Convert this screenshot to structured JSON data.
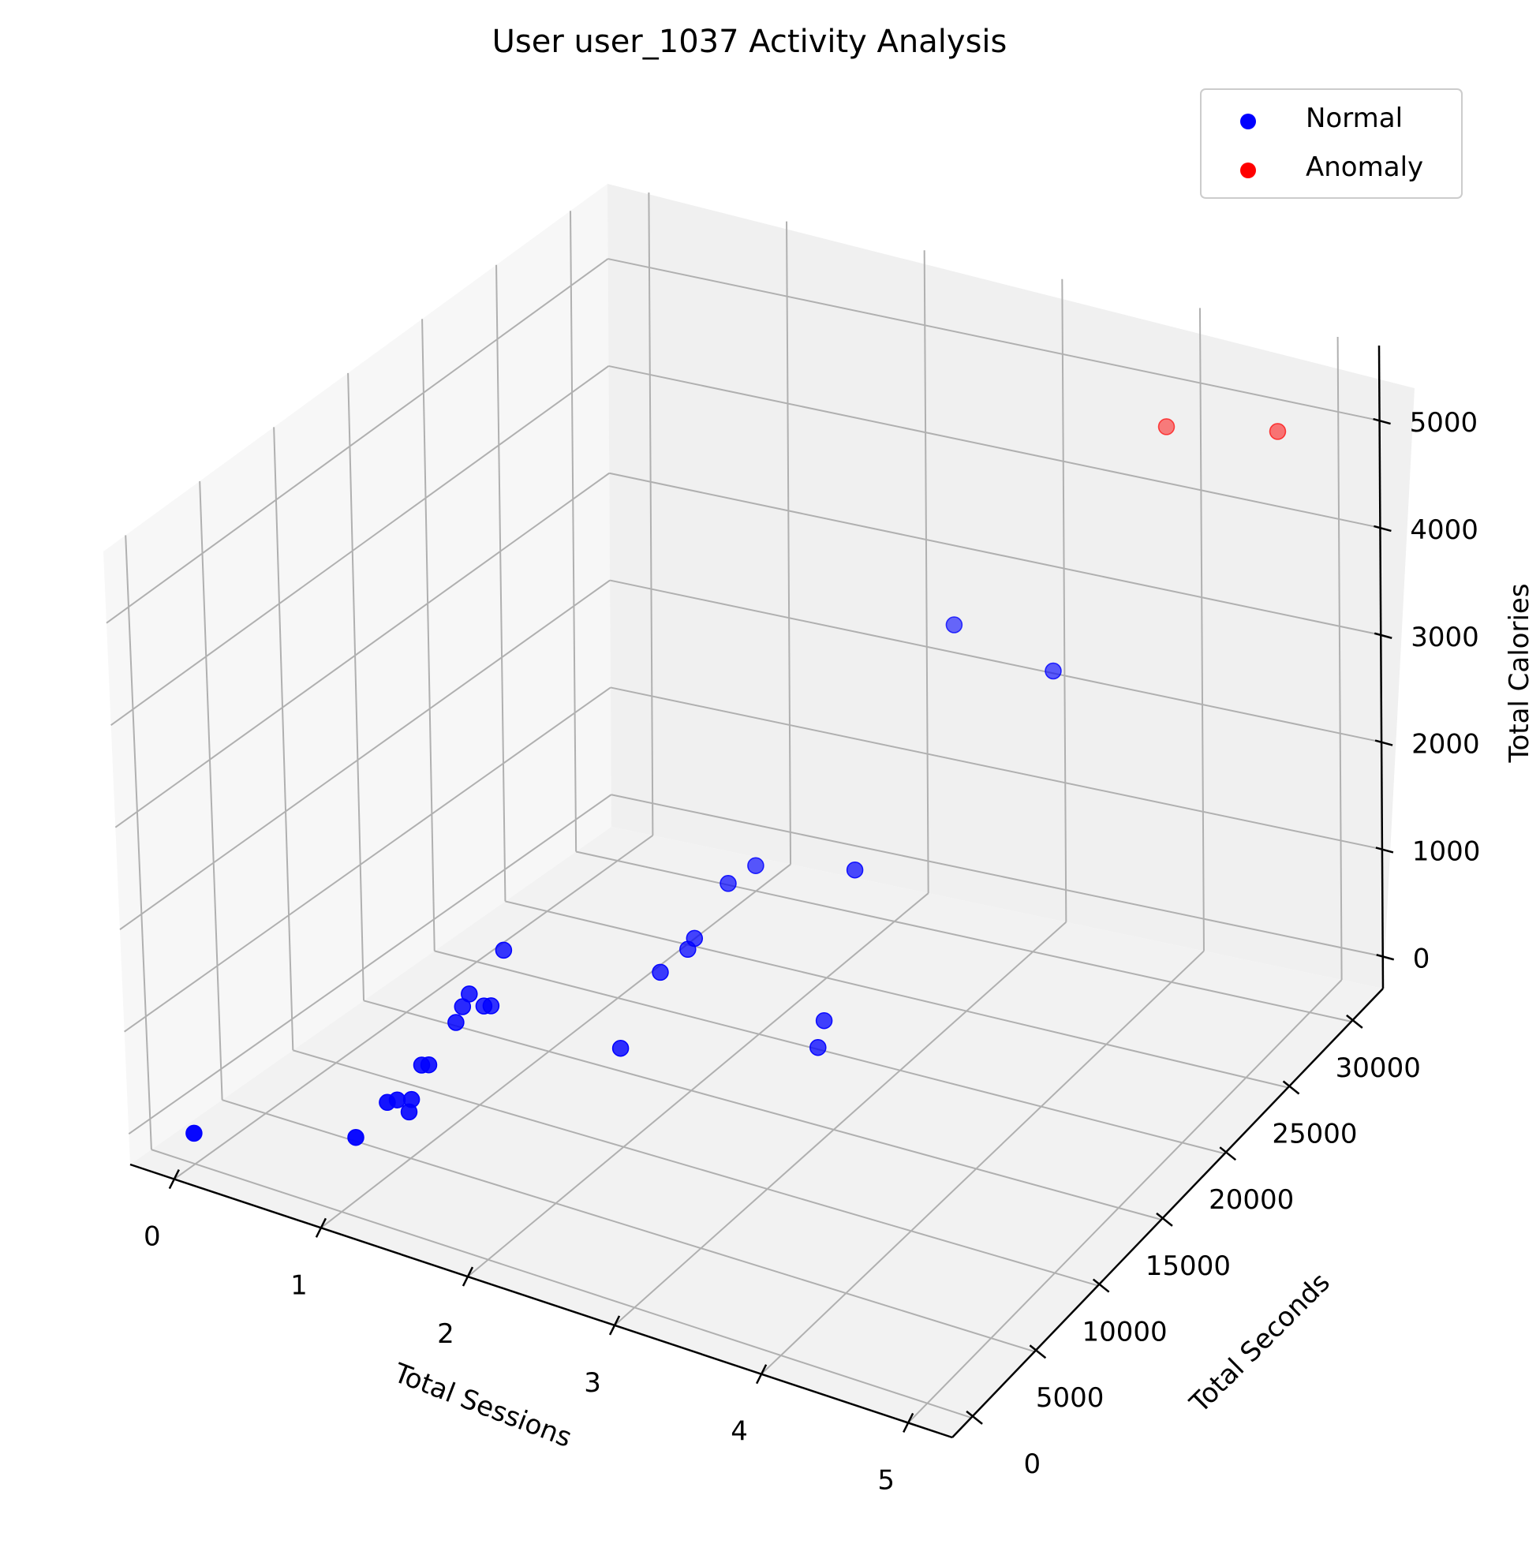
{
  "chart_data": {
    "type": "scatter",
    "projection": "3d",
    "title": "User user_1037 Activity Analysis",
    "xlabel": "Total Sessions",
    "ylabel": "Total Seconds",
    "zlabel": "Total Calories",
    "x_ticks": [
      "0",
      "1",
      "2",
      "3",
      "4",
      "5"
    ],
    "y_ticks": [
      "0",
      "5000",
      "10000",
      "15000",
      "20000",
      "25000",
      "30000"
    ],
    "z_ticks": [
      "0",
      "1000",
      "2000",
      "3000",
      "4000",
      "5000"
    ],
    "xlim": [
      -0.3,
      5.3
    ],
    "ylim": [
      -1500,
      32500
    ],
    "zlim": [
      -300,
      5700
    ],
    "grid": true,
    "legend_position": "top-right",
    "colors": {
      "normal": "#0000ff",
      "anomaly": "#ff0000"
    },
    "series": [
      {
        "name": "Normal",
        "color": "#0000ff",
        "points": [
          {
            "x": 0,
            "y": 0,
            "z": 0
          },
          {
            "x": 1,
            "y": 1200,
            "z": 300
          },
          {
            "x": 1,
            "y": 3500,
            "z": 400
          },
          {
            "x": 1,
            "y": 4200,
            "z": 350
          },
          {
            "x": 1,
            "y": 6000,
            "z": 500
          },
          {
            "x": 1,
            "y": 6500,
            "z": 450
          },
          {
            "x": 1,
            "y": 5000,
            "z": 150
          },
          {
            "x": 1,
            "y": 5200,
            "z": 250
          },
          {
            "x": 1,
            "y": 8500,
            "z": 650
          },
          {
            "x": 1,
            "y": 9000,
            "z": 750
          },
          {
            "x": 1,
            "y": 9500,
            "z": 820
          },
          {
            "x": 1,
            "y": 10500,
            "z": 600
          },
          {
            "x": 1,
            "y": 11000,
            "z": 550
          },
          {
            "x": 1,
            "y": 12000,
            "z": 980
          },
          {
            "x": 2,
            "y": 10000,
            "z": 650
          },
          {
            "x": 2,
            "y": 13000,
            "z": 1050
          },
          {
            "x": 2,
            "y": 18000,
            "z": 1350
          },
          {
            "x": 2,
            "y": 15000,
            "z": 1050
          },
          {
            "x": 2,
            "y": 15500,
            "z": 1100
          },
          {
            "x": 2,
            "y": 20000,
            "z": 1300
          },
          {
            "x": 3,
            "y": 14000,
            "z": 600
          },
          {
            "x": 3,
            "y": 14500,
            "z": 800
          },
          {
            "x": 3,
            "y": 17000,
            "z": 1950
          },
          {
            "x": 3,
            "y": 24500,
            "z": 3400
          },
          {
            "x": 4,
            "y": 21500,
            "z": 3650
          }
        ]
      },
      {
        "name": "Anomaly",
        "color": "#ff0000",
        "points": [
          {
            "x": 5,
            "y": 28000,
            "z": 5400
          },
          {
            "x": 4,
            "y": 30000,
            "z": 4900
          }
        ]
      }
    ]
  }
}
